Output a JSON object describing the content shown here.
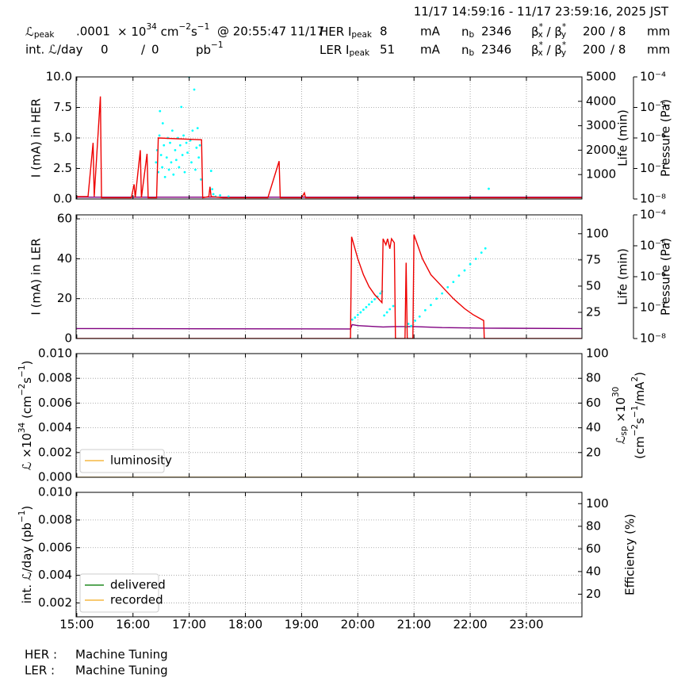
{
  "header": {
    "range": "11/17 14:59:16 - 11/17 23:59:16, 2025 JST",
    "rows": [
      [
        [
          {
            "t": "ℒ",
            "sub": "peak"
          }
        ],
        ".0001",
        [
          {
            "t": "× 10",
            "sup": "34"
          },
          {
            "t": " cm",
            "sup": "−2"
          },
          {
            "t": "s",
            "sup": "−1"
          }
        ],
        "@ 20:55:47 11/17",
        [
          {
            "t": "HER I",
            "sub": "peak"
          }
        ],
        "8",
        "mA",
        [
          {
            "t": "n",
            "sub": "b"
          }
        ],
        "2346",
        [
          {
            "t": "β",
            "sup": "*",
            "sub": "x"
          },
          {
            "t": " / β",
            "sup": "*",
            "sub": "y"
          }
        ],
        "200",
        "/ 8",
        "mm"
      ],
      [
        "int. ℒ/day",
        "0",
        "/",
        "0",
        [
          {
            "t": "pb",
            "sup": "−1"
          }
        ],
        [
          {
            "t": "LER I",
            "sub": "peak"
          }
        ],
        "51",
        "mA",
        [
          {
            "t": "n",
            "sub": "b"
          }
        ],
        "2346",
        [
          {
            "t": "β",
            "sup": "*",
            "sub": "x"
          },
          {
            "t": " / β",
            "sup": "*",
            "sub": "y"
          }
        ],
        "200",
        "/ 8",
        "mm"
      ]
    ]
  },
  "time_axis": {
    "xlim": [
      14.988,
      23.988
    ],
    "xticks": [
      {
        "value": 15,
        "label": "15:00"
      },
      {
        "value": 16,
        "label": "16:00"
      },
      {
        "value": 17,
        "label": "17:00"
      },
      {
        "value": 18,
        "label": "18:00"
      },
      {
        "value": 19,
        "label": "19:00"
      },
      {
        "value": 20,
        "label": "20:00"
      },
      {
        "value": 21,
        "label": "21:00"
      },
      {
        "value": 22,
        "label": "22:00"
      },
      {
        "value": 23,
        "label": "23:00"
      }
    ]
  },
  "chart_data": [
    {
      "type": "line",
      "ylabel": "I (mA) in HER",
      "ylim": [
        0,
        10
      ],
      "yticks": [
        {
          "value": 0,
          "label": "0.0"
        },
        {
          "value": 2.5,
          "label": "2.5"
        },
        {
          "value": 5,
          "label": "5.0"
        },
        {
          "value": 7.5,
          "label": "7.5"
        },
        {
          "value": 10,
          "label": "10.0"
        }
      ],
      "y2label": [
        "Life (min)"
      ],
      "y2lim": [
        0,
        5000
      ],
      "y2ticks": [
        1000,
        2000,
        3000,
        4000,
        5000
      ],
      "y3label": "Pressure (Pa)",
      "y3lim": [
        1e-08,
        0.0001
      ],
      "y3log": true,
      "y3ticks": [
        {
          "value": 1e-08,
          "label": "10⁻⁸"
        },
        {
          "value": 1e-07,
          "label": "10⁻⁷"
        },
        {
          "value": 1e-06,
          "label": "10⁻⁶"
        },
        {
          "value": 1e-05,
          "label": "10⁻⁵"
        },
        {
          "value": 0.0001,
          "label": "10⁻⁴"
        }
      ],
      "grid": true,
      "series": [
        {
          "color": "#800080",
          "x": [
            14.988,
            23.988
          ],
          "values": [
            0.15,
            0.15
          ]
        },
        {
          "color": "#00ffff",
          "type": "scatter",
          "axis": "y2",
          "x": [
            16.41,
            16.43,
            16.45,
            16.47,
            16.48,
            16.5,
            16.52,
            16.53,
            16.55,
            16.57,
            16.6,
            16.62,
            16.64,
            16.66,
            16.68,
            16.7,
            16.72,
            16.75,
            16.77,
            16.8,
            16.82,
            16.84,
            16.86,
            16.88,
            16.9,
            16.92,
            16.95,
            16.97,
            17.0,
            17.02,
            17.04,
            17.06,
            17.09,
            17.11,
            17.13,
            17.15,
            17.17,
            17.19,
            17.21,
            17.39,
            17.41,
            17.43,
            17.47,
            17.55,
            17.7,
            22.33
          ],
          "values": [
            1500,
            2000,
            1100,
            2600,
            3600,
            1800,
            1300,
            3100,
            2200,
            900,
            1700,
            2500,
            1200,
            2300,
            1500,
            2800,
            1000,
            2000,
            1600,
            2500,
            1300,
            2200,
            3770,
            1800,
            2600,
            1100,
            2300,
            1900,
            5000,
            2400,
            1500,
            2800,
            4480,
            1200,
            2100,
            2900,
            1700,
            2200,
            800,
            1150,
            400,
            200,
            100,
            150,
            100,
            420
          ]
        },
        {
          "color": "#ee0000",
          "x": [
            14.988,
            15.2,
            15.29,
            15.31,
            15.42,
            15.44,
            15.97,
            16.02,
            16.04,
            16.13,
            16.15,
            16.25,
            16.27,
            16.42,
            16.45,
            17.22,
            17.24,
            17.35,
            17.37,
            17.39,
            17.6,
            18.4,
            18.6,
            18.62,
            19.0,
            19.05,
            19.07,
            23.988
          ],
          "values": [
            0.2,
            0.2,
            4.6,
            0.2,
            8.4,
            0.1,
            0.1,
            1.2,
            0.1,
            4.0,
            0.1,
            3.7,
            0.1,
            0.1,
            5.0,
            4.85,
            0.1,
            0.2,
            1.0,
            0.2,
            0.1,
            0.1,
            3.1,
            0.1,
            0.1,
            0.5,
            0.1,
            0.1
          ]
        }
      ]
    },
    {
      "type": "line",
      "ylabel": "I (mA) in LER",
      "ylim": [
        0,
        62
      ],
      "yticks": [
        0,
        20,
        40,
        60
      ],
      "y2label": [
        "Life (min)"
      ],
      "y2lim": [
        0,
        118
      ],
      "y2ticks": [
        25,
        50,
        75,
        100
      ],
      "y3label": "Pressure (Pa)",
      "y3lim": [
        1e-08,
        0.0001
      ],
      "y3log": true,
      "y3ticks": [
        {
          "value": 1e-08,
          "label": "10⁻⁸"
        },
        {
          "value": 1e-07,
          "label": "10⁻⁷"
        },
        {
          "value": 1e-06,
          "label": "10⁻⁶"
        },
        {
          "value": 1e-05,
          "label": "10⁻⁵"
        },
        {
          "value": 0.0001,
          "label": "10⁻⁴"
        }
      ],
      "grid": true,
      "series": [
        {
          "color": "#800080",
          "x": [
            14.988,
            19.87,
            19.9,
            20.0,
            20.45,
            20.65,
            21.0,
            21.5,
            22.3,
            23.988
          ],
          "values": [
            5.0,
            4.8,
            7.0,
            6.5,
            5.8,
            6.0,
            6.0,
            5.5,
            5.2,
            5.0
          ]
        },
        {
          "color": "#00ffff",
          "type": "scatter",
          "axis": "y2",
          "x": [
            19.9,
            19.95,
            20.0,
            20.05,
            20.1,
            20.15,
            20.2,
            20.25,
            20.3,
            20.35,
            20.4,
            20.43,
            20.47,
            20.52,
            20.57,
            20.63,
            20.85,
            20.9,
            20.95,
            21.02,
            21.1,
            21.2,
            21.3,
            21.4,
            21.5,
            21.6,
            21.7,
            21.8,
            21.9,
            22.0,
            22.1,
            22.2,
            22.27
          ],
          "values": [
            18,
            20,
            22.5,
            25,
            27.5,
            30,
            32.5,
            35,
            37.5,
            40,
            43,
            45,
            22,
            25,
            28,
            31,
            11,
            14,
            12,
            17,
            21,
            27,
            32,
            38,
            43,
            49,
            54,
            60,
            65,
            71,
            76,
            82,
            86
          ]
        },
        {
          "color": "#ee0000",
          "x": [
            14.988,
            19.87,
            19.89,
            20.0,
            20.1,
            20.2,
            20.3,
            20.43,
            20.45,
            20.5,
            20.53,
            20.57,
            20.6,
            20.65,
            20.67,
            20.84,
            20.86,
            20.88,
            20.98,
            21.0,
            21.15,
            21.3,
            21.5,
            21.7,
            21.9,
            22.05,
            22.24,
            22.25,
            23.988
          ],
          "values": [
            0,
            0,
            51,
            40,
            32,
            26,
            22,
            18,
            50,
            47,
            50,
            45,
            50,
            48,
            0,
            0,
            38,
            0,
            0,
            52,
            40,
            32,
            26,
            20,
            15,
            12,
            9,
            0,
            0
          ]
        }
      ]
    },
    {
      "type": "line",
      "ylabel": [
        {
          "t": "ℒ ×10",
          "sup": "34"
        },
        {
          "t": " (cm",
          "sup": "−2"
        },
        {
          "t": "s",
          "sup": "−1"
        },
        {
          "t": ")"
        }
      ],
      "ylim": [
        0,
        0.01
      ],
      "yticks": [
        {
          "value": 0,
          "label": "0.000"
        },
        {
          "value": 0.002,
          "label": "0.002"
        },
        {
          "value": 0.004,
          "label": "0.004"
        },
        {
          "value": 0.006,
          "label": "0.006"
        },
        {
          "value": 0.008,
          "label": "0.008"
        },
        {
          "value": 0.01,
          "label": "0.010"
        }
      ],
      "y2label": [
        [
          {
            "t": "ℒ",
            "sub": "sp"
          },
          {
            "t": " ×10",
            "sup": "30"
          }
        ],
        [
          {
            "t": "(cm",
            "sup": "−2"
          },
          {
            "t": "s",
            "sup": "−1"
          },
          {
            "t": "/mA",
            "sup": "2"
          },
          {
            "t": ")"
          }
        ]
      ],
      "y2lim": [
        0,
        100
      ],
      "y2ticks": [
        20,
        40,
        60,
        80,
        100
      ],
      "grid": true,
      "legend": "lower left",
      "series": [
        {
          "name": "luminosity",
          "color": "#f5b942",
          "x": [
            14.988,
            23.988
          ],
          "values": [
            0,
            0
          ]
        }
      ]
    },
    {
      "type": "line",
      "ylabel": [
        {
          "t": "int. ℒ/day (pb",
          "sup": "−1"
        },
        {
          "t": ")"
        }
      ],
      "ylim": [
        0.001,
        0.01
      ],
      "yticks": [
        {
          "value": 0.002,
          "label": "0.002"
        },
        {
          "value": 0.004,
          "label": "0.004"
        },
        {
          "value": 0.006,
          "label": "0.006"
        },
        {
          "value": 0.008,
          "label": "0.008"
        },
        {
          "value": 0.01,
          "label": "0.010"
        }
      ],
      "y2label": [
        "Efficiency (%)"
      ],
      "y2lim": [
        0,
        110
      ],
      "y2ticks": [
        20,
        40,
        60,
        80,
        100
      ],
      "grid": true,
      "legend": "lower left",
      "series": [
        {
          "name": "delivered",
          "color": "#228b22",
          "x": [
            14.988,
            23.988
          ],
          "values": [
            0,
            0
          ]
        },
        {
          "name": "recorded",
          "color": "#f5b942",
          "x": [
            14.988,
            23.988
          ],
          "values": [
            0,
            0
          ]
        }
      ]
    }
  ],
  "footer": {
    "rows": [
      [
        "HER :",
        "Machine Tuning"
      ],
      [
        "LER :",
        "Machine Tuning"
      ]
    ]
  }
}
